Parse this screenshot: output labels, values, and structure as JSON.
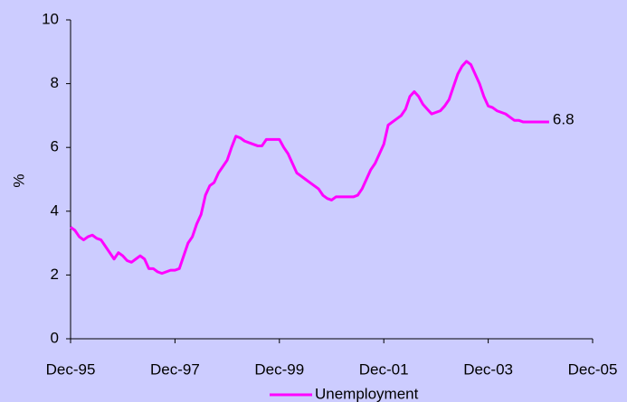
{
  "chart_data": {
    "type": "line",
    "y_label": "%",
    "categories": [
      "Dec-95",
      null,
      null,
      null,
      null,
      null,
      null,
      null,
      null,
      null,
      null,
      null,
      null,
      null,
      null,
      null,
      null,
      null,
      null,
      null,
      null,
      null,
      null,
      null,
      "Dec-97",
      null,
      null,
      null,
      null,
      null,
      null,
      null,
      null,
      null,
      null,
      null,
      null,
      null,
      null,
      null,
      null,
      null,
      null,
      null,
      null,
      null,
      null,
      null,
      "Dec-99",
      null,
      null,
      null,
      null,
      null,
      null,
      null,
      null,
      null,
      null,
      null,
      null,
      null,
      null,
      null,
      null,
      null,
      null,
      null,
      null,
      null,
      null,
      null,
      "Dec-01",
      null,
      null,
      null,
      null,
      null,
      null,
      null,
      null,
      null,
      null,
      null,
      null,
      null,
      null,
      null,
      null,
      null,
      null,
      null,
      null,
      null,
      null,
      null,
      "Dec-03",
      null,
      null,
      null,
      null,
      null,
      null,
      null,
      null,
      null,
      null,
      null,
      null,
      null,
      null,
      null,
      null,
      null,
      null,
      null,
      null,
      null,
      null,
      null,
      "Dec-05"
    ],
    "series": [
      {
        "name": "Unemployment",
        "color": "#ff00ff",
        "values": [
          3.5,
          3.4,
          3.2,
          3.1,
          3.2,
          3.25,
          3.15,
          3.1,
          2.9,
          2.7,
          2.5,
          2.7,
          2.6,
          2.45,
          2.4,
          2.5,
          2.6,
          2.5,
          2.2,
          2.2,
          2.1,
          2.05,
          2.1,
          2.15,
          2.15,
          2.2,
          2.6,
          3.0,
          3.2,
          3.6,
          3.9,
          4.5,
          4.8,
          4.9,
          5.2,
          5.4,
          5.6,
          6.0,
          6.35,
          6.3,
          6.2,
          6.15,
          6.1,
          6.05,
          6.05,
          6.25,
          6.25,
          6.25,
          6.25,
          6.0,
          5.8,
          5.5,
          5.2,
          5.1,
          5.0,
          4.9,
          4.8,
          4.7,
          4.5,
          4.4,
          4.35,
          4.45,
          4.45,
          4.45,
          4.45,
          4.45,
          4.5,
          4.7,
          5.0,
          5.3,
          5.5,
          5.8,
          6.1,
          6.7,
          6.8,
          6.9,
          7.0,
          7.2,
          7.6,
          7.75,
          7.6,
          7.35,
          7.2,
          7.05,
          7.1,
          7.15,
          7.3,
          7.5,
          7.9,
          8.3,
          8.55,
          8.7,
          8.6,
          8.3,
          8.0,
          7.6,
          7.3,
          7.25,
          7.15,
          7.1,
          7.05,
          6.95,
          6.85,
          6.85,
          6.8,
          6.8,
          6.8,
          6.8,
          6.8,
          6.8,
          6.8,
          null,
          null,
          null,
          null,
          null,
          null,
          null,
          null,
          null,
          null
        ],
        "end_label": "6.8"
      }
    ],
    "ylim": [
      0,
      10
    ],
    "yticks": [
      0,
      2,
      4,
      6,
      8,
      10
    ],
    "grid": false,
    "legend": "bottom"
  }
}
